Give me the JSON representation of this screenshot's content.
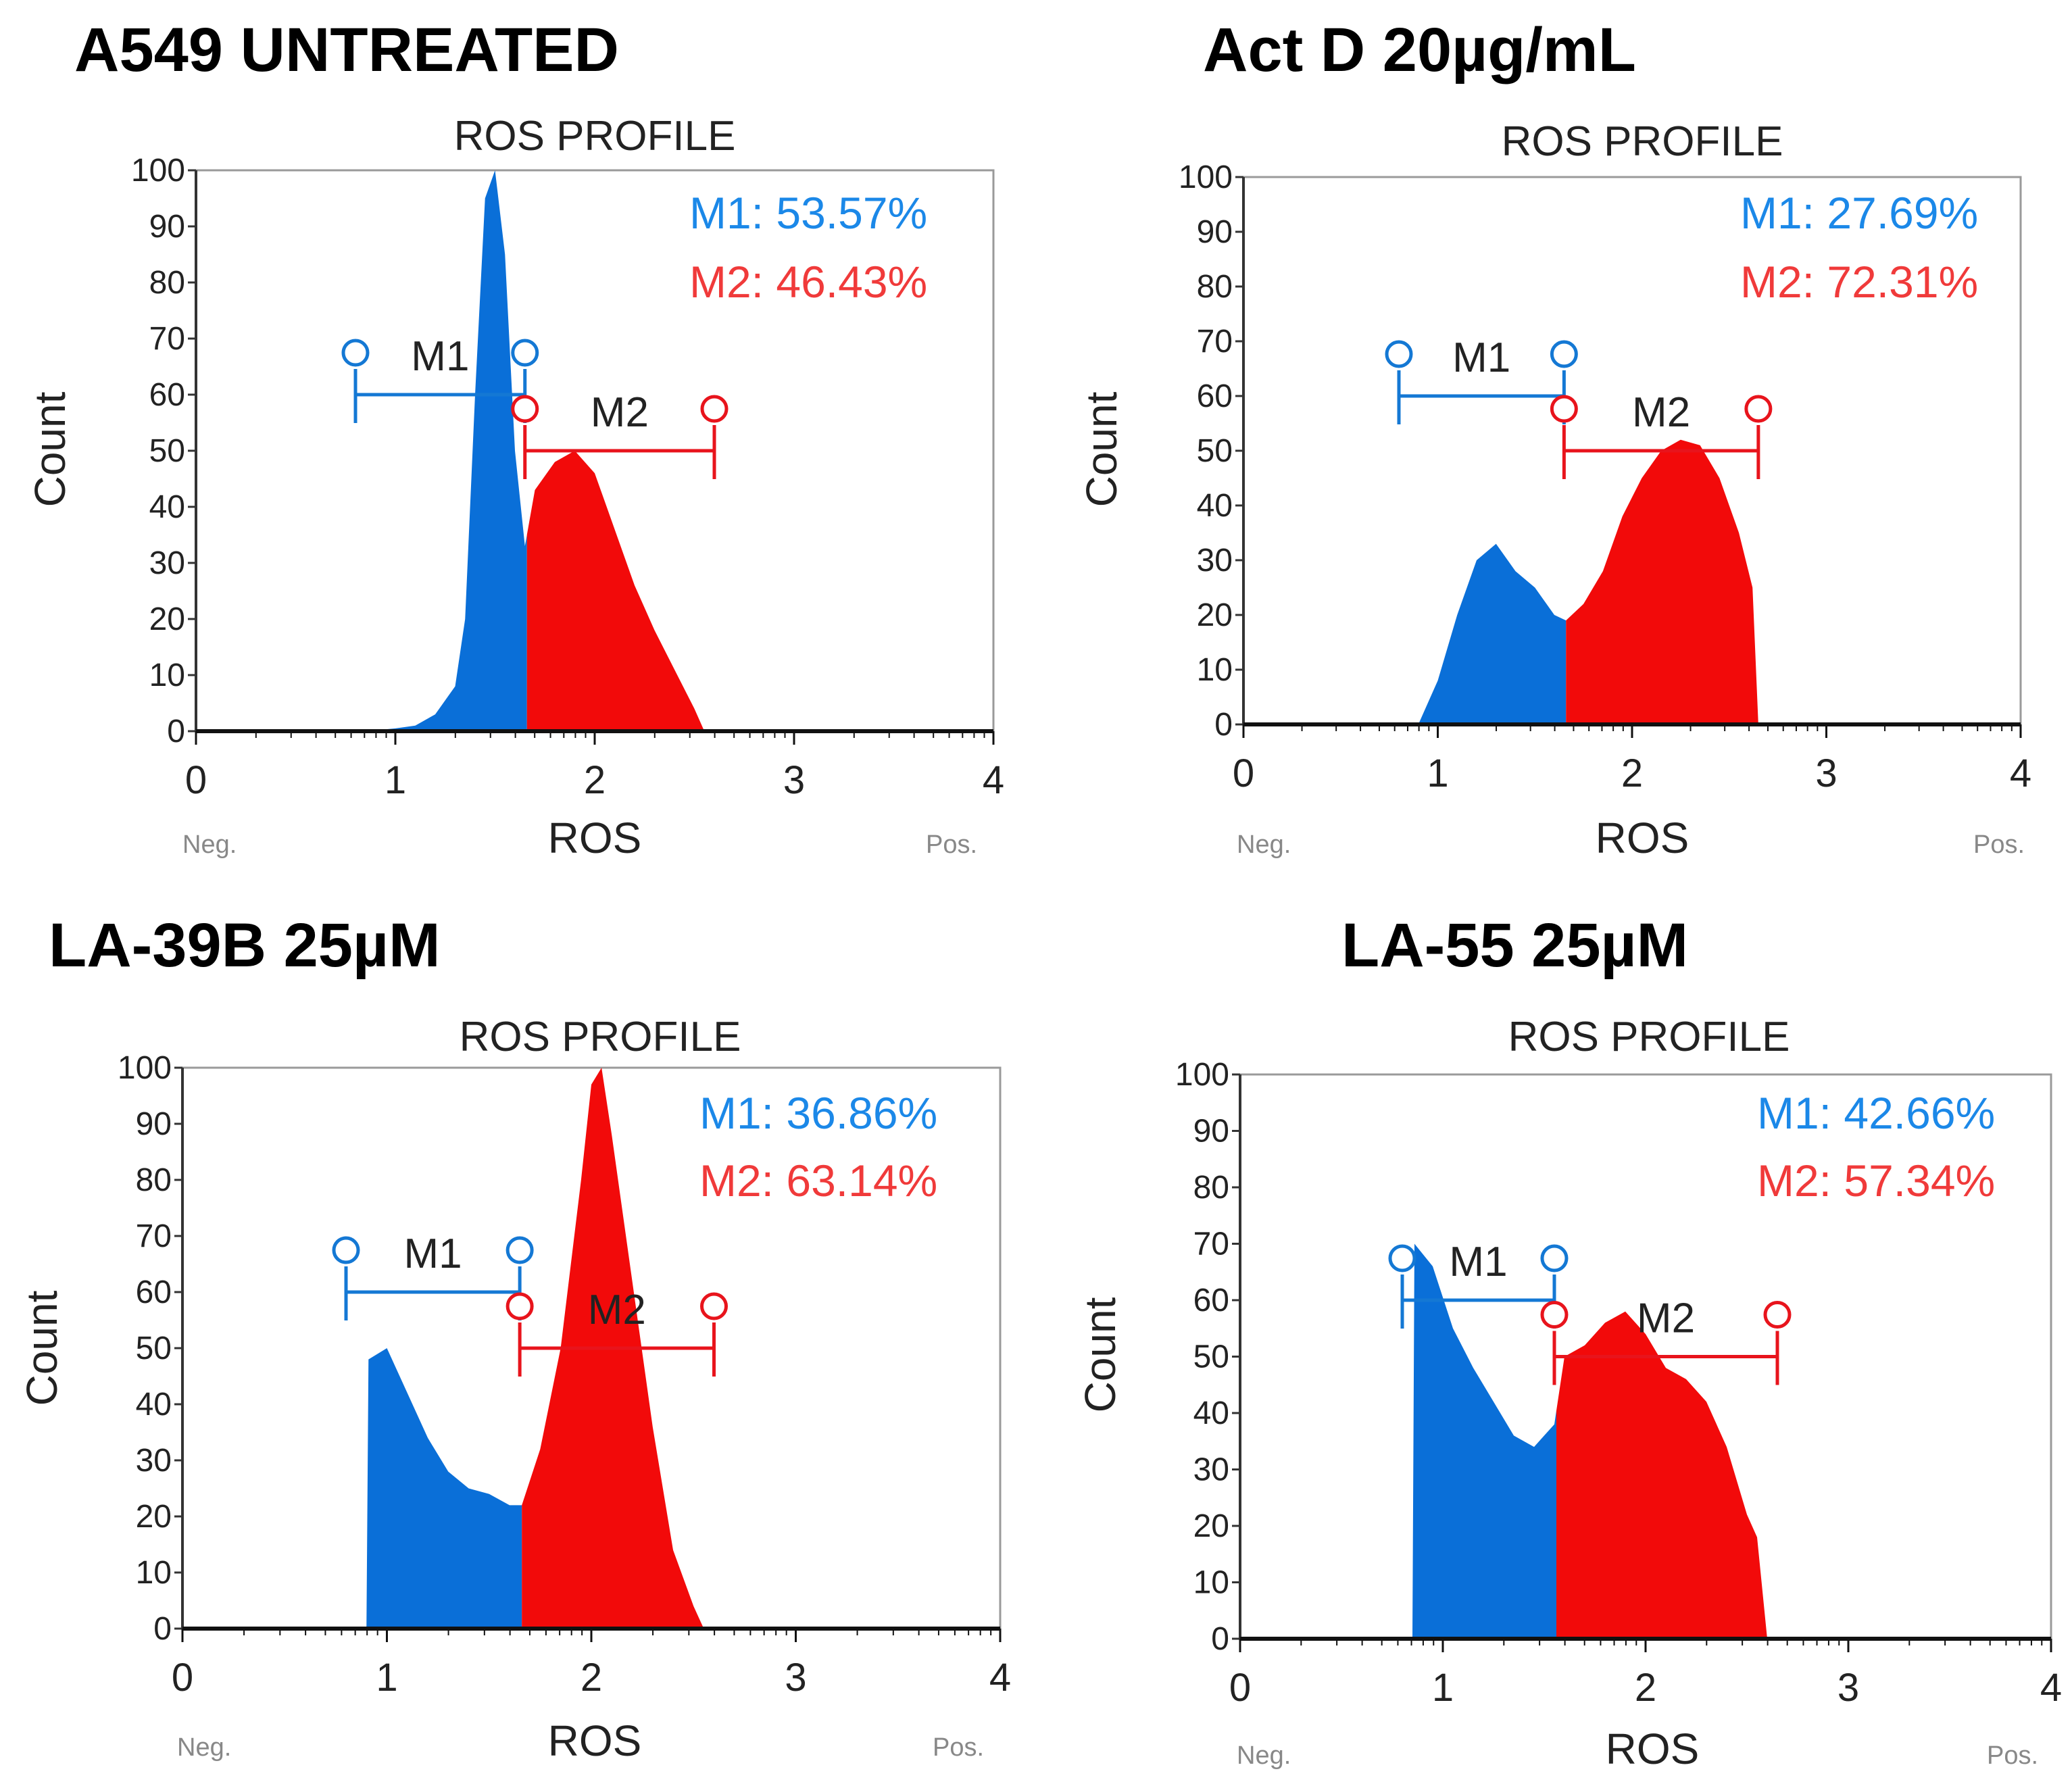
{
  "chart_data": [
    {
      "type": "histogram",
      "panel_title": "A549 UNTREATED",
      "title": "ROS PROFILE",
      "xlabel": "ROS",
      "ylabel": "Count",
      "x_ticks": [
        "0",
        "1",
        "2",
        "3",
        "4"
      ],
      "y_ticks": [
        "0",
        "10",
        "20",
        "30",
        "40",
        "50",
        "60",
        "70",
        "80",
        "90",
        "100"
      ],
      "xlim": [
        0,
        4
      ],
      "ylim": [
        0,
        100
      ],
      "x_left_label": "Neg.",
      "x_right_label": "Pos.",
      "stats": {
        "m1": "M1: 53.57%",
        "m2": "M2: 46.43%"
      },
      "markers": [
        {
          "label": "M1",
          "start": 0.8,
          "end": 1.65,
          "level": 60,
          "color": "#1478d4"
        },
        {
          "label": "M2",
          "start": 1.65,
          "end": 2.6,
          "level": 50,
          "color": "#e8141c"
        }
      ],
      "colors": {
        "m1": "#0a6fd8",
        "m2": "#f20a0a"
      },
      "histogram_points": [
        [
          0.85,
          0
        ],
        [
          1.0,
          0.5
        ],
        [
          1.1,
          1
        ],
        [
          1.2,
          3
        ],
        [
          1.3,
          8
        ],
        [
          1.35,
          20
        ],
        [
          1.4,
          60
        ],
        [
          1.45,
          95
        ],
        [
          1.5,
          100
        ],
        [
          1.55,
          85
        ],
        [
          1.6,
          50
        ],
        [
          1.65,
          33
        ],
        [
          1.7,
          43
        ],
        [
          1.8,
          48
        ],
        [
          1.9,
          50
        ],
        [
          2.0,
          46
        ],
        [
          2.1,
          36
        ],
        [
          2.2,
          26
        ],
        [
          2.3,
          18
        ],
        [
          2.4,
          11
        ],
        [
          2.5,
          4
        ],
        [
          2.55,
          0
        ]
      ],
      "split_x": 1.66
    },
    {
      "type": "histogram",
      "panel_title": "Act D 20µg/mL",
      "title": "ROS PROFILE",
      "xlabel": "ROS",
      "ylabel": "Count",
      "x_ticks": [
        "0",
        "1",
        "2",
        "3",
        "4"
      ],
      "y_ticks": [
        "0",
        "10",
        "20",
        "30",
        "40",
        "50",
        "60",
        "70",
        "80",
        "90",
        "100"
      ],
      "xlim": [
        0,
        4
      ],
      "ylim": [
        0,
        100
      ],
      "x_left_label": "Neg.",
      "x_right_label": "Pos.",
      "stats": {
        "m1": "M1: 27.69%",
        "m2": "M2: 72.31%"
      },
      "markers": [
        {
          "label": "M1",
          "start": 0.8,
          "end": 1.65,
          "level": 60,
          "color": "#1478d4"
        },
        {
          "label": "M2",
          "start": 1.65,
          "end": 2.65,
          "level": 50,
          "color": "#e8141c"
        }
      ],
      "colors": {
        "m1": "#0a6fd8",
        "m2": "#f20a0a"
      },
      "histogram_points": [
        [
          0.9,
          0
        ],
        [
          1.0,
          8
        ],
        [
          1.1,
          20
        ],
        [
          1.2,
          30
        ],
        [
          1.3,
          33
        ],
        [
          1.4,
          28
        ],
        [
          1.5,
          25
        ],
        [
          1.6,
          20
        ],
        [
          1.66,
          19
        ],
        [
          1.75,
          22
        ],
        [
          1.85,
          28
        ],
        [
          1.95,
          38
        ],
        [
          2.05,
          45
        ],
        [
          2.15,
          50
        ],
        [
          2.25,
          52
        ],
        [
          2.35,
          51
        ],
        [
          2.45,
          45
        ],
        [
          2.55,
          35
        ],
        [
          2.62,
          25
        ],
        [
          2.65,
          0
        ]
      ],
      "split_x": 1.66
    },
    {
      "type": "histogram",
      "panel_title": "LA-39B 25µM",
      "title": "ROS PROFILE",
      "xlabel": "ROS",
      "ylabel": "Count",
      "x_ticks": [
        "0",
        "1",
        "2",
        "3",
        "4"
      ],
      "y_ticks": [
        "0",
        "10",
        "20",
        "30",
        "40",
        "50",
        "60",
        "70",
        "80",
        "90",
        "100"
      ],
      "xlim": [
        0,
        4
      ],
      "ylim": [
        0,
        100
      ],
      "x_left_label": "Neg.",
      "x_right_label": "Pos.",
      "stats": {
        "m1": "M1: 36.86%",
        "m2": "M2: 63.14%"
      },
      "markers": [
        {
          "label": "M1",
          "start": 0.8,
          "end": 1.65,
          "level": 60,
          "color": "#1478d4"
        },
        {
          "label": "M2",
          "start": 1.65,
          "end": 2.6,
          "level": 50,
          "color": "#e8141c"
        }
      ],
      "colors": {
        "m1": "#0a6fd8",
        "m2": "#f20a0a"
      },
      "histogram_points": [
        [
          0.9,
          0
        ],
        [
          0.91,
          48
        ],
        [
          1.0,
          50
        ],
        [
          1.1,
          42
        ],
        [
          1.2,
          34
        ],
        [
          1.3,
          28
        ],
        [
          1.4,
          25
        ],
        [
          1.5,
          24
        ],
        [
          1.6,
          22
        ],
        [
          1.66,
          22
        ],
        [
          1.75,
          32
        ],
        [
          1.85,
          50
        ],
        [
          1.95,
          80
        ],
        [
          2.0,
          97
        ],
        [
          2.05,
          100
        ],
        [
          2.1,
          88
        ],
        [
          2.2,
          62
        ],
        [
          2.3,
          36
        ],
        [
          2.4,
          14
        ],
        [
          2.5,
          4
        ],
        [
          2.55,
          0
        ]
      ],
      "split_x": 1.66
    },
    {
      "type": "histogram",
      "panel_title": "LA-55 25µM",
      "title": "ROS PROFILE",
      "xlabel": "ROS",
      "ylabel": "Count",
      "x_ticks": [
        "0",
        "1",
        "2",
        "3",
        "4"
      ],
      "y_ticks": [
        "0",
        "10",
        "20",
        "30",
        "40",
        "50",
        "60",
        "70",
        "80",
        "90",
        "100"
      ],
      "xlim": [
        0,
        4
      ],
      "ylim": [
        0,
        100
      ],
      "x_left_label": "Neg.",
      "x_right_label": "Pos.",
      "stats": {
        "m1": "M1: 42.66%",
        "m2": "M2: 57.34%"
      },
      "markers": [
        {
          "label": "M1",
          "start": 0.8,
          "end": 1.55,
          "level": 60,
          "color": "#1478d4"
        },
        {
          "label": "M2",
          "start": 1.55,
          "end": 2.65,
          "level": 50,
          "color": "#e8141c"
        }
      ],
      "colors": {
        "m1": "#0a6fd8",
        "m2": "#f20a0a"
      },
      "histogram_points": [
        [
          0.85,
          0
        ],
        [
          0.86,
          70
        ],
        [
          0.95,
          66
        ],
        [
          1.05,
          55
        ],
        [
          1.15,
          48
        ],
        [
          1.25,
          42
        ],
        [
          1.35,
          36
        ],
        [
          1.45,
          34
        ],
        [
          1.55,
          38
        ],
        [
          1.6,
          50
        ],
        [
          1.7,
          52
        ],
        [
          1.8,
          56
        ],
        [
          1.9,
          58
        ],
        [
          2.0,
          54
        ],
        [
          2.1,
          48
        ],
        [
          2.2,
          46
        ],
        [
          2.3,
          42
        ],
        [
          2.4,
          34
        ],
        [
          2.5,
          22
        ],
        [
          2.55,
          18
        ],
        [
          2.6,
          0
        ]
      ],
      "split_x": 1.56
    }
  ]
}
